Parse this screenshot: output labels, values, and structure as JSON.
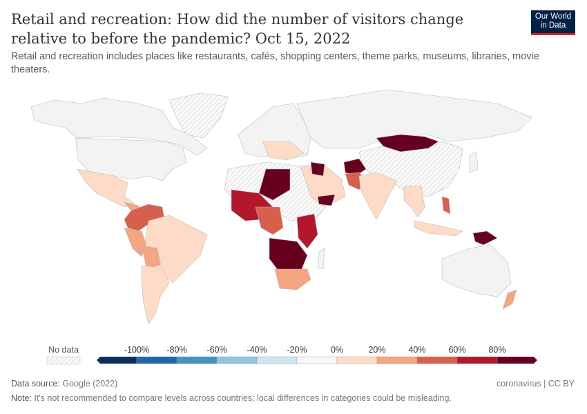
{
  "header": {
    "title": "Retail and recreation: How did the number of visitors change relative to before the pandemic? Oct 15, 2022",
    "subtitle": "Retail and recreation includes places like restaurants, cafés, shopping centers, theme parks, museums, libraries, movie theaters.",
    "logo": "Our World in Data"
  },
  "legend": {
    "no_data_label": "No data",
    "ticks": [
      "-100%",
      "-80%",
      "-60%",
      "-40%",
      "-20%",
      "0%",
      "20%",
      "40%",
      "60%",
      "80%"
    ],
    "colors": [
      "#0c2f5e",
      "#2166ac",
      "#4393c3",
      "#92c5de",
      "#d1e5f0",
      "#f7f7f7",
      "#fddbc7",
      "#f4a582",
      "#d6604d",
      "#b2182b",
      "#67001f"
    ],
    "no_data_color": "#f0f0f0"
  },
  "chart_data": {
    "type": "choropleth map",
    "bins": [
      -100,
      -80,
      -60,
      -40,
      -20,
      0,
      20,
      40,
      60,
      80
    ],
    "units": "%"
  },
  "footer": {
    "source_label": "Data source:",
    "source": "Google (2022)",
    "license": "coronavirus | CC BY",
    "note_label": "Note:",
    "note": "It's not recommended to compare levels across countries; local differences in categories could be misleading."
  }
}
